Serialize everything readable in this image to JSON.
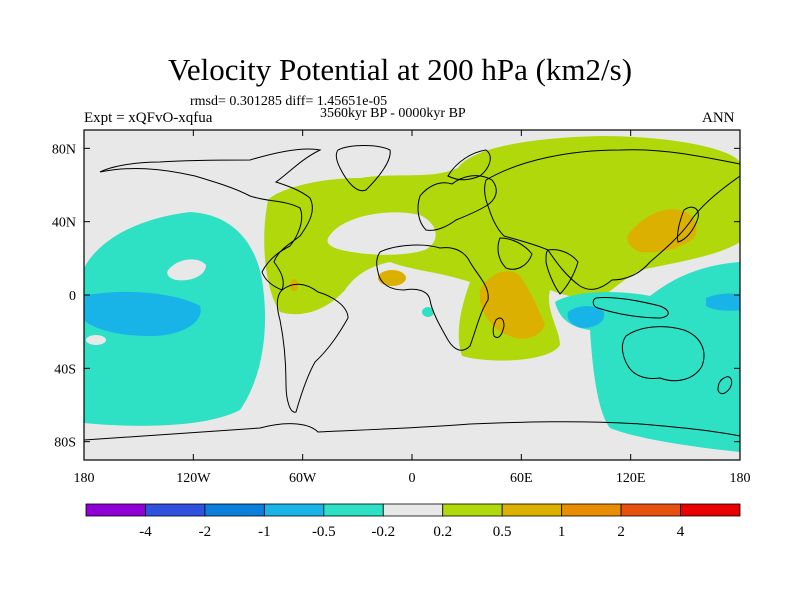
{
  "title": "Velocity Potential at 200 hPa (km2/s)",
  "stats": "rmsd= 0.301285 diff= 1.45651e-05",
  "period": "3560kyr BP - 0000kyr BP",
  "experiment": "Expt = xQFvO-xqfua",
  "season": "ANN",
  "map": {
    "lon_range": [
      -180,
      180
    ],
    "lat_range": [
      -90,
      90
    ],
    "x_ticks": [
      {
        "value": -180,
        "label": "180"
      },
      {
        "value": -120,
        "label": "120W"
      },
      {
        "value": -60,
        "label": "60W"
      },
      {
        "value": 0,
        "label": "0"
      },
      {
        "value": 60,
        "label": "60E"
      },
      {
        "value": 120,
        "label": "120E"
      },
      {
        "value": 180,
        "label": "180"
      }
    ],
    "y_ticks": [
      {
        "value": 80,
        "label": "80N"
      },
      {
        "value": 40,
        "label": "40N"
      },
      {
        "value": 0,
        "label": "0"
      },
      {
        "value": -40,
        "label": "40S"
      },
      {
        "value": -80,
        "label": "80S"
      }
    ]
  },
  "colorbar": {
    "colors": [
      "#8f00d4",
      "#3050e0",
      "#0a7fdc",
      "#18b4e8",
      "#2ee0c4",
      "#e8e8e8",
      "#b0d80a",
      "#dcb000",
      "#e88c00",
      "#e85010",
      "#e80000"
    ],
    "labels": [
      "-4",
      "-2",
      "-1",
      "-0.5",
      "-0.2",
      "0.2",
      "0.5",
      "1",
      "2",
      "4"
    ]
  },
  "colors": {
    "neutral": "#e8e8e8",
    "neg_light": "#2ee0c4",
    "neg_medium": "#18b4e8",
    "pos_light": "#b0d80a",
    "pos_medium": "#dcb000"
  }
}
